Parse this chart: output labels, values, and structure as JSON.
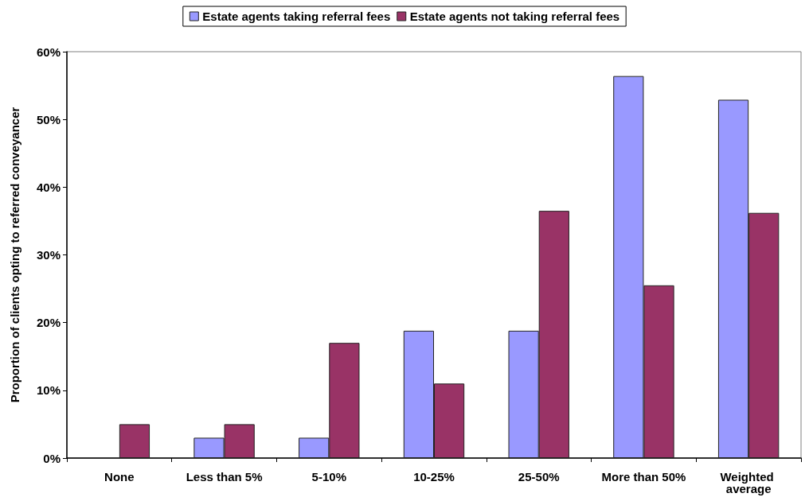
{
  "chart_data": {
    "type": "bar",
    "ylabel": "Proportion of clients opting to referred conveyancer",
    "categories": [
      "None",
      "Less than 5%",
      "5-10%",
      "10-25%",
      "25-50%",
      "More than 50%",
      "Weighted average"
    ],
    "series": [
      {
        "name": "Estate agents taking referral fees",
        "color": "#9999ff",
        "values": [
          0,
          3,
          3,
          18.8,
          18.8,
          56.4,
          52.9
        ]
      },
      {
        "name": "Estate agents not taking referral fees",
        "color": "#993366",
        "values": [
          5,
          5,
          17,
          11,
          36.5,
          25.5,
          36.2
        ]
      }
    ],
    "ylim": [
      0,
      60
    ],
    "yticks": [
      {
        "value": 0,
        "label": "0%"
      },
      {
        "value": 10,
        "label": "10%"
      },
      {
        "value": 20,
        "label": "20%"
      },
      {
        "value": 30,
        "label": "30%"
      },
      {
        "value": 40,
        "label": "40%"
      },
      {
        "value": 50,
        "label": "50%"
      },
      {
        "value": 60,
        "label": "60%"
      }
    ],
    "legend": "top"
  }
}
